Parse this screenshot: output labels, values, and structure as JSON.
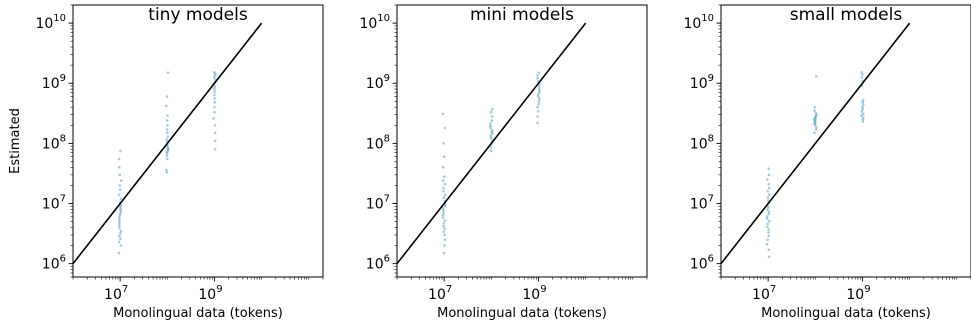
{
  "chart_data": [
    {
      "type": "scatter",
      "title": "tiny models",
      "xlabel": "Monolingual data (tokens)",
      "ylabel": "Estimated",
      "xscale": "log",
      "yscale": "log",
      "xlim": [
        1000000,
        200000000000
      ],
      "ylim": [
        600000,
        20000000000
      ],
      "x_ticks": [
        10000000,
        1000000000
      ],
      "x_tick_labels": [
        {
          "base": "10",
          "exp": "7"
        },
        {
          "base": "10",
          "exp": "9"
        }
      ],
      "y_ticks": [
        1000000,
        10000000,
        100000000,
        1000000000,
        10000000000
      ],
      "y_tick_labels": [
        {
          "base": "10",
          "exp": "6"
        },
        {
          "base": "10",
          "exp": "7"
        },
        {
          "base": "10",
          "exp": "8"
        },
        {
          "base": "10",
          "exp": "9"
        },
        {
          "base": "10",
          "exp": "10"
        }
      ],
      "reference_line": {
        "x": [
          1000000,
          10000000000
        ],
        "y": [
          1000000,
          10000000000
        ],
        "color": "#000000"
      },
      "point_color": "#1f77b4",
      "grid": false,
      "series": [
        {
          "x": 10000000,
          "y": [
            1500000,
            2000000,
            2300000,
            2600000,
            2900000,
            3200000,
            3500000,
            3900000,
            4300000,
            4700000,
            5100000,
            5500000,
            6000000,
            6500000,
            7000000,
            7600000,
            8200000,
            8800000,
            9500000,
            10500000,
            12000000,
            14000000,
            17000000,
            20000000,
            24000000,
            30000000,
            40000000,
            55000000,
            75000000
          ]
        },
        {
          "x": 100000000,
          "y": [
            33000000,
            36000000,
            55000000,
            62000000,
            68000000,
            72000000,
            76000000,
            80000000,
            85000000,
            90000000,
            96000000,
            105000000,
            115000000,
            130000000,
            150000000,
            170000000,
            200000000,
            240000000,
            290000000,
            420000000,
            600000000,
            1500000000
          ]
        },
        {
          "x": 1000000000,
          "y": [
            80000000,
            110000000,
            150000000,
            200000000,
            260000000,
            330000000,
            400000000,
            480000000,
            560000000,
            640000000,
            720000000,
            800000000,
            880000000,
            960000000,
            1050000000,
            1150000000,
            1250000000,
            1350000000,
            1450000000,
            1520000000
          ]
        }
      ]
    },
    {
      "type": "scatter",
      "title": "mini models",
      "xlabel": "Monolingual data (tokens)",
      "ylabel": "",
      "xscale": "log",
      "yscale": "log",
      "xlim": [
        1000000,
        200000000000
      ],
      "ylim": [
        600000,
        20000000000
      ],
      "x_ticks": [
        10000000,
        1000000000
      ],
      "x_tick_labels": [
        {
          "base": "10",
          "exp": "7"
        },
        {
          "base": "10",
          "exp": "9"
        }
      ],
      "y_ticks": [
        1000000,
        10000000,
        100000000,
        1000000000,
        10000000000
      ],
      "y_tick_labels": [
        {
          "base": "10",
          "exp": "6"
        },
        {
          "base": "10",
          "exp": "7"
        },
        {
          "base": "10",
          "exp": "8"
        },
        {
          "base": "10",
          "exp": "9"
        },
        {
          "base": "10",
          "exp": "10"
        }
      ],
      "reference_line": {
        "x": [
          1000000,
          10000000000
        ],
        "y": [
          1000000,
          10000000000
        ],
        "color": "#000000"
      },
      "point_color": "#1f77b4",
      "grid": false,
      "series": [
        {
          "x": 10000000,
          "y": [
            1500000,
            2000000,
            2500000,
            3000000,
            3400000,
            3800000,
            4200000,
            4700000,
            5200000,
            5800000,
            6400000,
            7000000,
            7700000,
            8400000,
            9200000,
            10000000,
            11000000,
            12500000,
            14000000,
            16000000,
            18000000,
            21000000,
            24000000,
            28000000,
            40000000,
            60000000,
            100000000,
            180000000,
            310000000
          ]
        },
        {
          "x": 100000000,
          "y": [
            75000000,
            85000000,
            95000000,
            105000000,
            115000000,
            125000000,
            135000000,
            145000000,
            155000000,
            165000000,
            180000000,
            195000000,
            215000000,
            240000000,
            280000000,
            330000000,
            370000000
          ]
        },
        {
          "x": 1000000000,
          "y": [
            220000000,
            280000000,
            340000000,
            400000000,
            450000000,
            500000000,
            550000000,
            600000000,
            650000000,
            700000000,
            760000000,
            820000000,
            900000000,
            980000000,
            1070000000,
            1200000000,
            1350000000,
            1500000000
          ]
        }
      ]
    },
    {
      "type": "scatter",
      "title": "small models",
      "xlabel": "Monolingual data (tokens)",
      "ylabel": "",
      "xscale": "log",
      "yscale": "log",
      "xlim": [
        1000000,
        200000000000
      ],
      "ylim": [
        600000,
        20000000000
      ],
      "x_ticks": [
        10000000,
        1000000000
      ],
      "x_tick_labels": [
        {
          "base": "10",
          "exp": "7"
        },
        {
          "base": "10",
          "exp": "9"
        }
      ],
      "y_ticks": [
        1000000,
        10000000,
        100000000,
        1000000000,
        10000000000
      ],
      "y_tick_labels": [
        {
          "base": "10",
          "exp": "6"
        },
        {
          "base": "10",
          "exp": "7"
        },
        {
          "base": "10",
          "exp": "8"
        },
        {
          "base": "10",
          "exp": "9"
        },
        {
          "base": "10",
          "exp": "10"
        }
      ],
      "reference_line": {
        "x": [
          1000000,
          10000000000
        ],
        "y": [
          1000000,
          10000000000
        ],
        "color": "#000000"
      },
      "point_color": "#1f77b4",
      "grid": false,
      "series": [
        {
          "x": 10000000,
          "y": [
            1300000,
            1700000,
            2100000,
            2500000,
            2900000,
            3300000,
            3700000,
            4100000,
            4600000,
            5100000,
            5600000,
            6100000,
            6700000,
            7300000,
            7900000,
            8600000,
            9300000,
            10200000,
            11200000,
            12500000,
            14000000,
            16000000,
            18000000,
            21000000,
            25000000,
            30000000,
            38000000
          ]
        },
        {
          "x": 100000000,
          "y": [
            150000000,
            170000000,
            185000000,
            200000000,
            210000000,
            220000000,
            230000000,
            240000000,
            250000000,
            260000000,
            270000000,
            285000000,
            300000000,
            320000000,
            350000000,
            400000000,
            1300000000
          ]
        },
        {
          "x": 1000000000,
          "y": [
            230000000,
            250000000,
            270000000,
            290000000,
            310000000,
            340000000,
            370000000,
            400000000,
            440000000,
            480000000,
            520000000,
            900000000,
            1100000000,
            1250000000,
            1400000000,
            1520000000
          ]
        }
      ]
    }
  ]
}
